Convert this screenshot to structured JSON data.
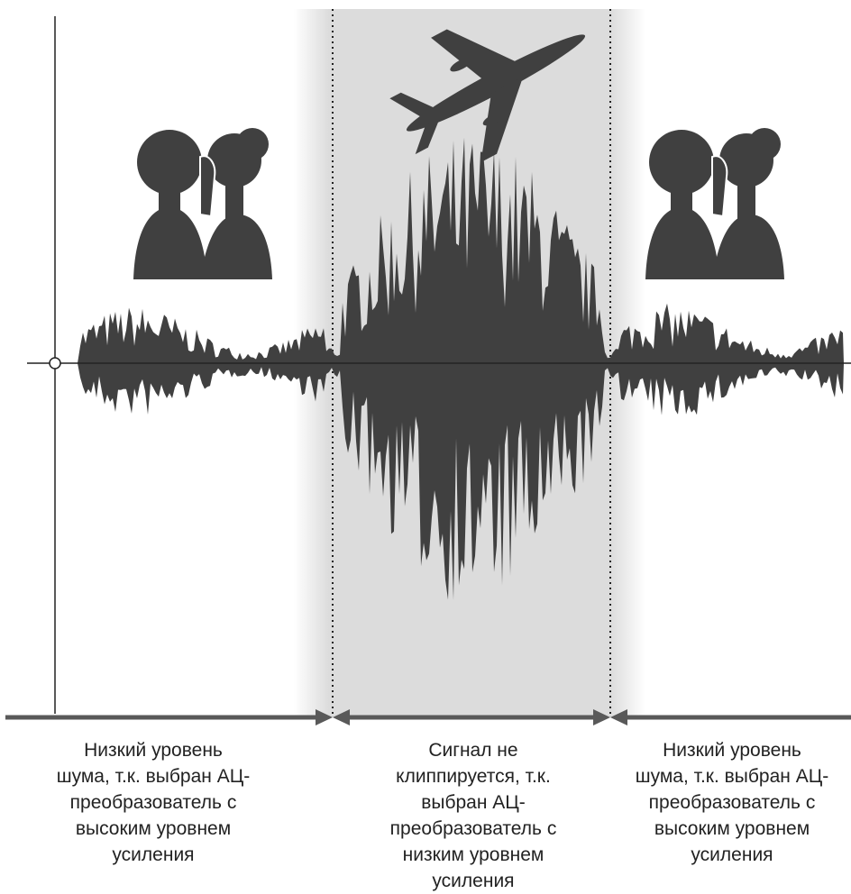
{
  "colors": {
    "waveform": "#404040",
    "zone_shade": "#dcdcdc",
    "axis": "#222222",
    "baseline_bar": "#595959"
  },
  "icons": {
    "left_group": "whispering-people-icon",
    "middle": "airplane-icon",
    "right_group": "whispering-people-icon"
  },
  "captions": {
    "left": [
      "Низкий уровень",
      "шума, т.к. выбран АЦ-",
      "преобразователь с",
      "высоким уровнем",
      "усиления"
    ],
    "middle": [
      "Сигнал не",
      "клиппируется, т.к.",
      "выбран АЦ-",
      "преобразователь с",
      "низким уровнем",
      "усиления"
    ],
    "right": [
      "Низкий уровень",
      "шума, т.к. выбран АЦ-",
      "преобразователь с",
      "высоким уровнем",
      "усиления"
    ]
  }
}
